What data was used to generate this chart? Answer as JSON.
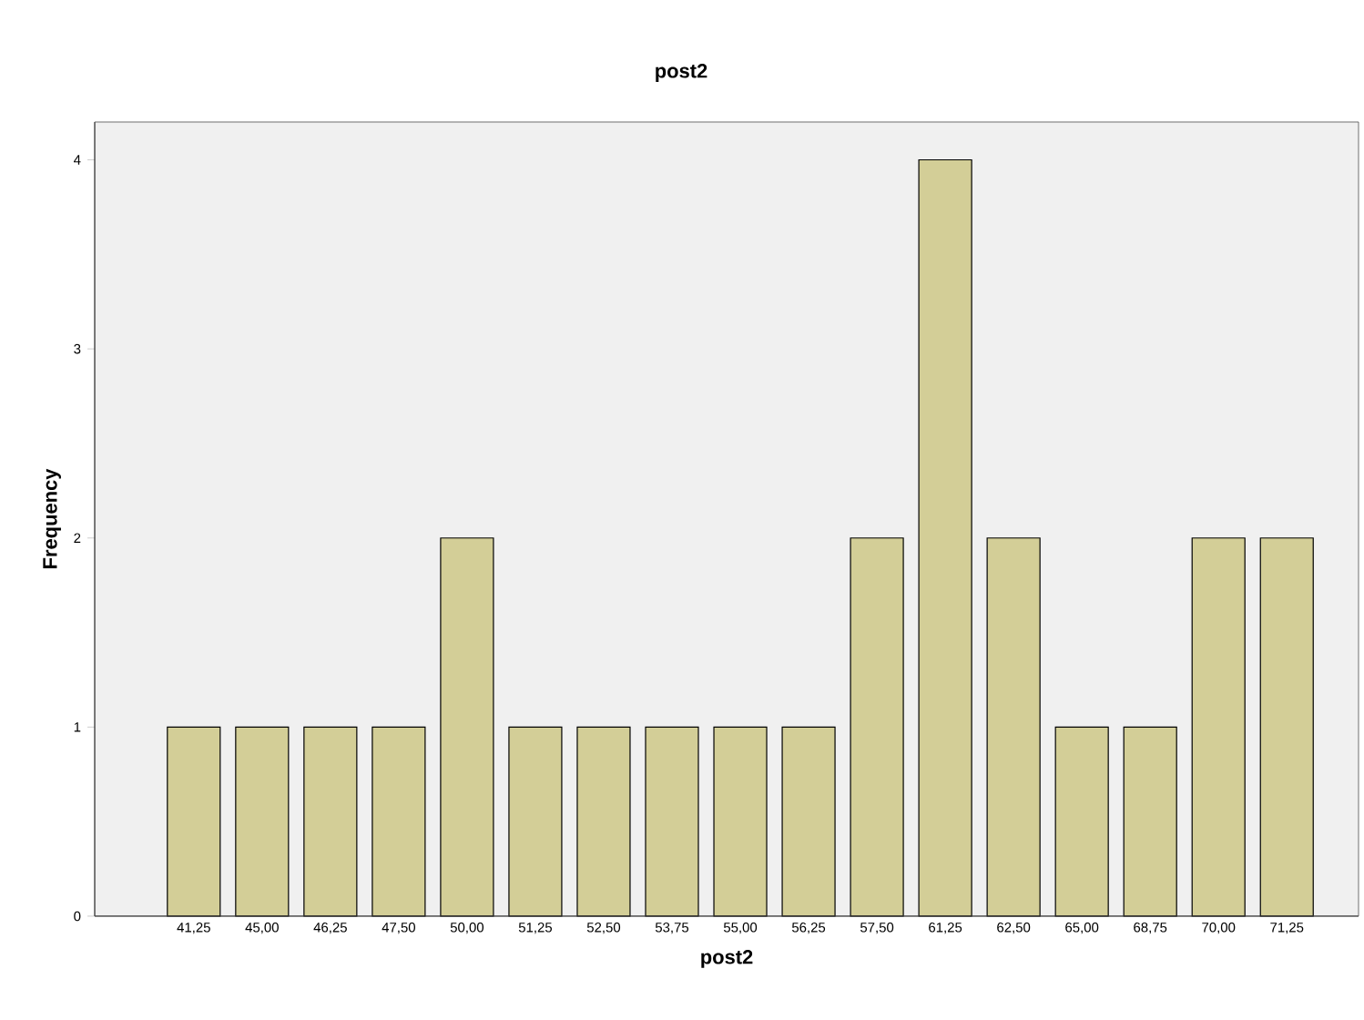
{
  "chart_data": {
    "type": "bar",
    "title": "post2",
    "xlabel": "post2",
    "ylabel": "Frequency",
    "categories": [
      "41,25",
      "45,00",
      "46,25",
      "47,50",
      "50,00",
      "51,25",
      "52,50",
      "53,75",
      "55,00",
      "56,25",
      "57,50",
      "61,25",
      "62,50",
      "65,00",
      "68,75",
      "70,00",
      "71,25"
    ],
    "values": [
      1,
      1,
      1,
      1,
      2,
      1,
      1,
      1,
      1,
      1,
      2,
      4,
      2,
      1,
      1,
      2,
      2
    ],
    "color": "#d3ce97",
    "ylim": [
      0,
      4.2
    ],
    "yticks": [
      0,
      1,
      2,
      3,
      4
    ]
  }
}
